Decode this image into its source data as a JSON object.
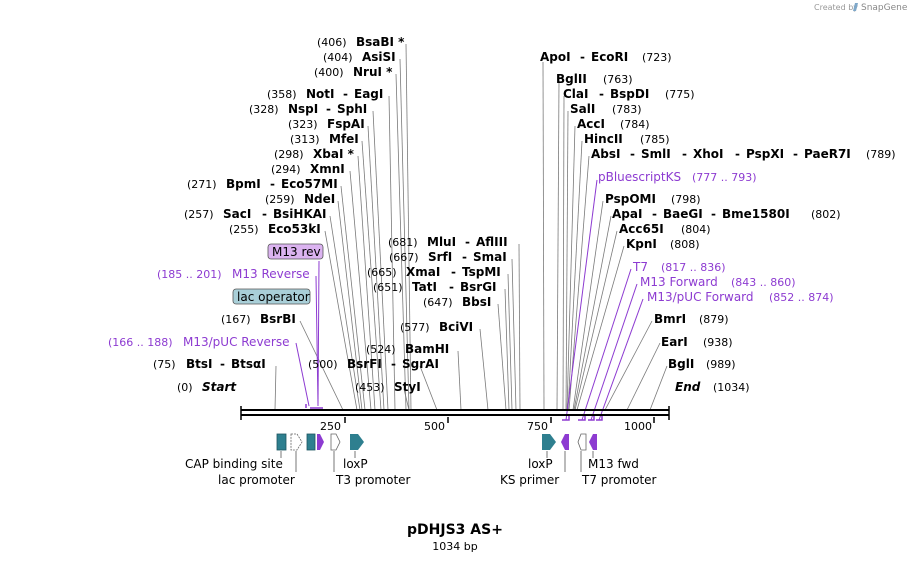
{
  "credit": {
    "text": "Created by",
    "brand": "SnapGene"
  },
  "map": {
    "name": "pDHJS3 AS+",
    "length_label": "1034 bp",
    "start_label": "Start",
    "end_label": "End",
    "start_pos": "(0)",
    "end_pos": "(1034)",
    "ticks": [
      "250",
      "500",
      "750",
      "1000"
    ]
  },
  "colors": {
    "teal": "#2e7f8f",
    "purple": "#8d3bd1",
    "lavender": "#dbb3f0",
    "lightblue": "#a9cfd8"
  },
  "enzymes": {
    "e0": {
      "pos": "(406)",
      "name": "BsaBI *"
    },
    "e1": {
      "pos": "(404)",
      "name": "AsiSI"
    },
    "e2": {
      "pos": "(400)",
      "name": "NruI *"
    },
    "e3": {
      "pos": "(358)",
      "name": "NotI",
      "name2": "EagI"
    },
    "e4": {
      "pos": "(328)",
      "name": "NspI",
      "name2": "SphI"
    },
    "e5": {
      "pos": "(323)",
      "name": "FspAI"
    },
    "e6": {
      "pos": "(313)",
      "name": "MfeI"
    },
    "e7": {
      "pos": "(298)",
      "name": "XbaI *"
    },
    "e8": {
      "pos": "(294)",
      "name": "XmnI"
    },
    "e9": {
      "pos": "(271)",
      "name": "BpmI",
      "name2": "Eco57MI"
    },
    "e10": {
      "pos": "(259)",
      "name": "NdeI"
    },
    "e11": {
      "pos": "(257)",
      "name": "SacI",
      "name2": "BsiHKAI"
    },
    "e12": {
      "pos": "(255)",
      "name": "Eco53kI"
    },
    "e13": {
      "pos": "(681)",
      "name": "MluI",
      "name2": "AflIII"
    },
    "e14": {
      "pos": "(667)",
      "name": "SrfI",
      "name2": "SmaI"
    },
    "e15": {
      "pos": "(665)",
      "name": "XmaI",
      "name2": "TspMI"
    },
    "e16": {
      "pos": "(651)",
      "name": "TatI",
      "name2": "BsrGI"
    },
    "e17": {
      "pos": "(647)",
      "name": "BbsI"
    },
    "e18": {
      "pos": "(577)",
      "name": "BciVI"
    },
    "e19": {
      "pos": "(524)",
      "name": "BamHI"
    },
    "e20": {
      "pos": "(500)",
      "name": "BsrFI",
      "name2": "SgrAI"
    },
    "e21": {
      "pos": "(453)",
      "name": "StyI"
    },
    "e22": {
      "pos": "(167)",
      "name": "BsrBI"
    },
    "e23": {
      "pos": "(75)",
      "name": "BtsI",
      "name2": "BtsαI"
    },
    "e24": {
      "pos": "(723)",
      "name": "ApoI",
      "name2": "EcoRI"
    },
    "e25": {
      "pos": "(763)",
      "name": "BglII"
    },
    "e26": {
      "pos": "(775)",
      "name": "ClaI",
      "name2": "BspDI"
    },
    "e27": {
      "pos": "(783)",
      "name": "SalI"
    },
    "e28": {
      "pos": "(784)",
      "name": "AccI"
    },
    "e29": {
      "pos": "(785)",
      "name": "HincII"
    },
    "e30": {
      "pos": "(789)",
      "name": "AbsI",
      "name2": "SmlI",
      "name3": "XhoI",
      "name4": "PspXI",
      "name5": "PaeR7I"
    },
    "e31": {
      "pos": "(798)",
      "name": "PspOMI"
    },
    "e32": {
      "pos": "(802)",
      "name": "ApaI",
      "name2": "BaeGI",
      "name3": "Bme1580I"
    },
    "e33": {
      "pos": "(804)",
      "name": "Acc65I"
    },
    "e34": {
      "pos": "(808)",
      "name": "KpnI"
    },
    "e35": {
      "pos": "(879)",
      "name": "BmrI"
    },
    "e36": {
      "pos": "(938)",
      "name": "EarI"
    },
    "e37": {
      "pos": "(989)",
      "name": "BglI"
    }
  },
  "primers": {
    "m13rev_range": "(185 .. 201)",
    "m13rev_name": "M13 Reverse",
    "m13pucrev_range": "(166 .. 188)",
    "m13pucrev_name": "M13/pUC Reverse",
    "pbks_range": "(777 .. 793)",
    "pbks_name": "pBluescriptKS",
    "t7_range": "(817 .. 836)",
    "t7_name": "T7",
    "m13fwd_range": "(843 .. 860)",
    "m13fwd_name": "M13 Forward",
    "m13pucfwd_range": "(852 .. 874)",
    "m13pucfwd_name": "M13/pUC Forward"
  },
  "boxes": {
    "m13rev": "M13 rev",
    "lacop": "lac operator"
  },
  "features": {
    "cap": "CAP binding site",
    "lacprom": "lac promoter",
    "loxp1": "loxP",
    "t3": "T3 promoter",
    "loxp2": "loxP",
    "ks": "KS primer",
    "m13fwd": "M13 fwd",
    "t7": "T7 promoter"
  }
}
